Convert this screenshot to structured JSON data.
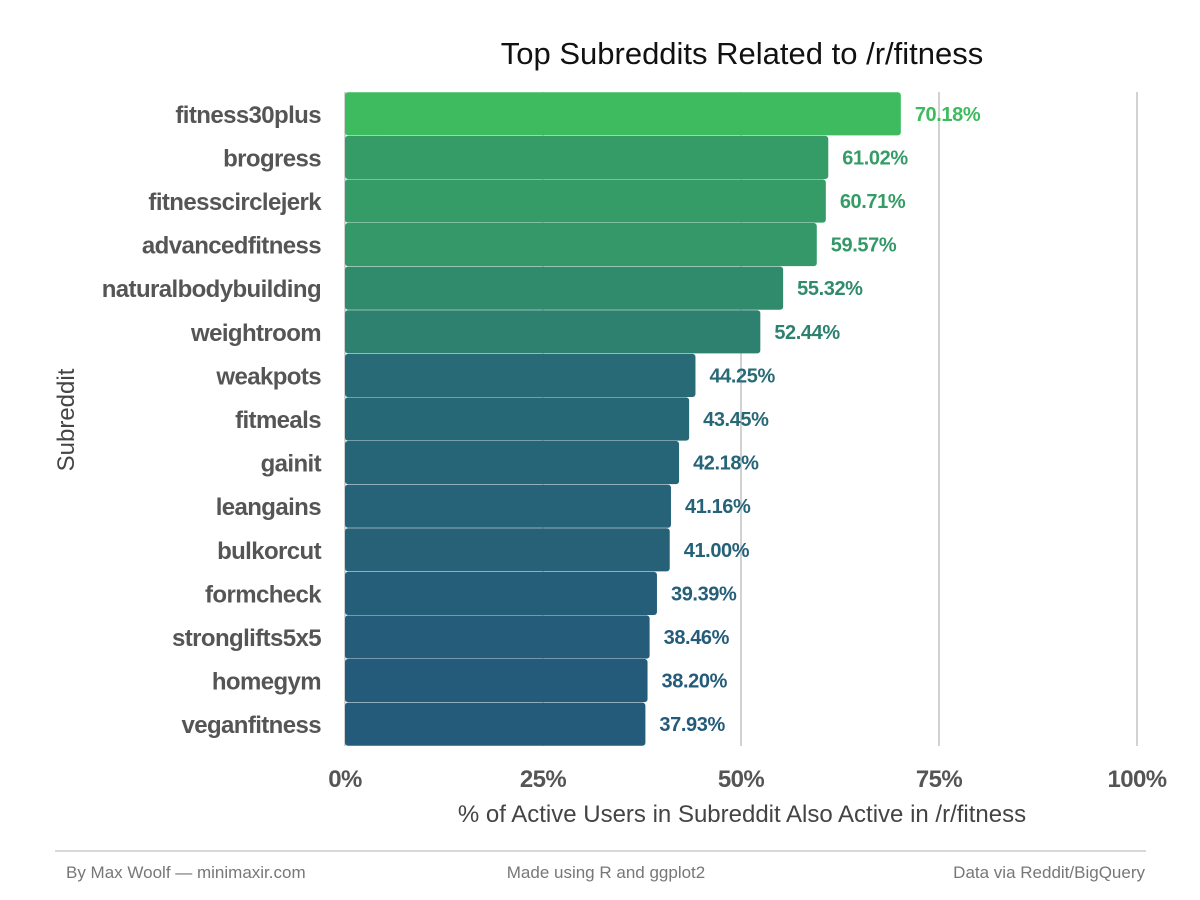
{
  "chart_data": {
    "type": "bar",
    "orientation": "horizontal",
    "title": "Top Subreddits Related to /r/fitness",
    "xlabel": "% of Active Users in Subreddit Also Active in /r/fitness",
    "ylabel": "Subreddit",
    "categories": [
      "fitness30plus",
      "brogress",
      "fitnesscirclejerk",
      "advancedfitness",
      "naturalbodybuilding",
      "weightroom",
      "weakpots",
      "fitmeals",
      "gainit",
      "leangains",
      "bulkorcut",
      "formcheck",
      "stronglifts5x5",
      "homegym",
      "veganfitness"
    ],
    "values": [
      70.18,
      61.02,
      60.71,
      59.57,
      55.32,
      52.44,
      44.25,
      43.45,
      42.18,
      41.16,
      41.0,
      39.39,
      38.46,
      38.2,
      37.93
    ],
    "data_labels": [
      "70.18%",
      "61.02%",
      "60.71%",
      "59.57%",
      "55.32%",
      "52.44%",
      "44.25%",
      "43.45%",
      "42.18%",
      "41.16%",
      "41.00%",
      "39.39%",
      "38.46%",
      "38.20%",
      "37.93%"
    ],
    "xlim": [
      0,
      100
    ],
    "ticks": [
      0,
      25,
      50,
      75,
      100
    ],
    "tick_labels": [
      "0%",
      "25%",
      "50%",
      "75%",
      "100%"
    ],
    "grid": "vertical-major",
    "legend": "none",
    "color_scale": {
      "low": "#245B7A",
      "high": "#3DBB5E"
    }
  },
  "footer": {
    "left": "By Max Woolf — minimaxir.com",
    "center": "Made using R and ggplot2",
    "right": "Data via Reddit/BigQuery"
  }
}
